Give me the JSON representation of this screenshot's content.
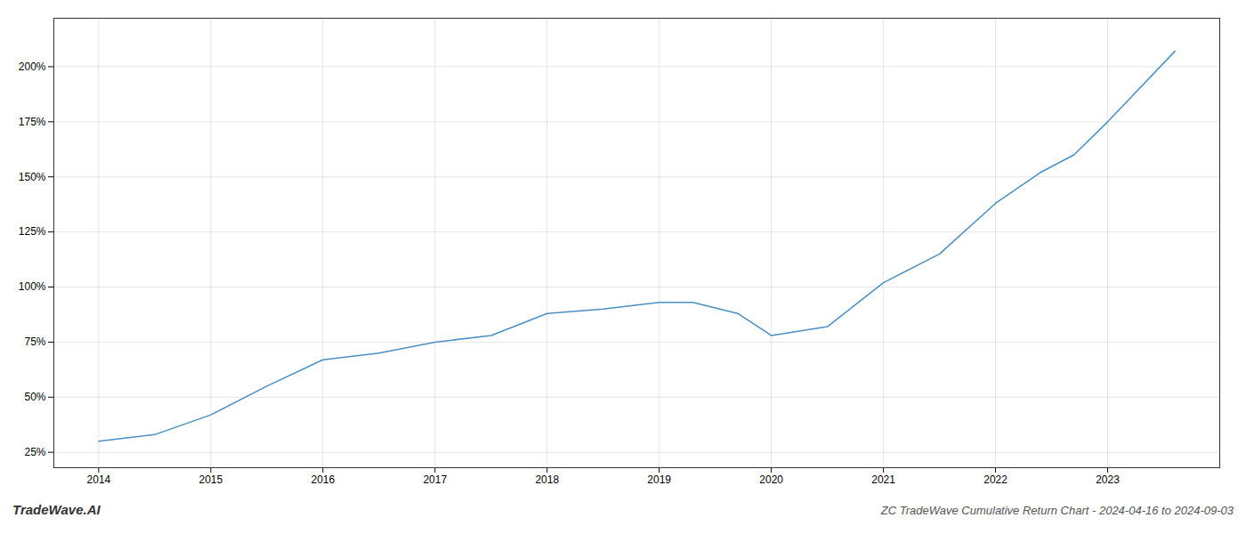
{
  "chart_data": {
    "type": "line",
    "title": "ZC TradeWave Cumulative Return Chart - 2024-04-16 to 2024-09-03",
    "annotations": [
      "TradeWave.AI"
    ],
    "x": [
      2014,
      2014.5,
      2015,
      2015.5,
      2016,
      2016.5,
      2017,
      2017.5,
      2018,
      2018.5,
      2019,
      2019.3,
      2019.7,
      2020,
      2020.5,
      2021,
      2021.5,
      2022,
      2022.4,
      2022.7,
      2023,
      2023.6
    ],
    "values": [
      30,
      33,
      42,
      55,
      67,
      70,
      75,
      78,
      88,
      90,
      93,
      93,
      88,
      78,
      82,
      102,
      115,
      138,
      152,
      160,
      175,
      207
    ],
    "color": "#4a90c4",
    "xlim": [
      2013.6,
      2024.0
    ],
    "ylim": [
      18,
      222
    ],
    "xticks": [
      2014,
      2015,
      2016,
      2017,
      2018,
      2019,
      2020,
      2021,
      2022,
      2023
    ],
    "yticks": [
      {
        "value": 25,
        "label": "25%"
      },
      {
        "value": 50,
        "label": "50%"
      },
      {
        "value": 75,
        "label": "75%"
      },
      {
        "value": 100,
        "label": "100%"
      },
      {
        "value": 125,
        "label": "125%"
      },
      {
        "value": 150,
        "label": "150%"
      },
      {
        "value": 175,
        "label": "175%"
      },
      {
        "value": 200,
        "label": "200%"
      }
    ],
    "grid": true
  }
}
